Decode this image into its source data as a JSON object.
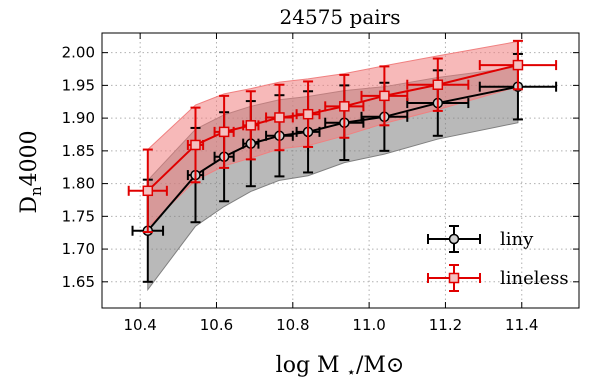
{
  "chart_data": {
    "type": "line",
    "title": "24575 pairs",
    "xlabel": "log M",
    "xlabel_sub": "⋆",
    "xlabel_tail": "/M",
    "xlabel_sym": "⊙",
    "ylabel": "D",
    "ylabel_sub": "n",
    "ylabel_tail": "4000",
    "xlim": [
      10.3,
      11.55
    ],
    "ylim": [
      1.61,
      2.03
    ],
    "xticks": [
      10.4,
      10.6,
      10.8,
      11.0,
      11.2,
      11.4
    ],
    "xtick_labels": [
      "10.4",
      "10.6",
      "10.8",
      "11.0",
      "11.2",
      "11.4"
    ],
    "yticks": [
      1.65,
      1.7,
      1.75,
      1.8,
      1.85,
      1.9,
      1.95,
      2.0
    ],
    "ytick_labels": [
      "1.65",
      "1.70",
      "1.75",
      "1.80",
      "1.85",
      "1.90",
      "1.95",
      "2.00"
    ],
    "grid": true,
    "legend_position": "lower-right",
    "series": [
      {
        "name": "liny",
        "color": "#000000",
        "band_color": "#808080",
        "marker": "circle",
        "x": [
          10.42,
          10.545,
          10.62,
          10.69,
          10.765,
          10.84,
          10.935,
          11.04,
          11.18,
          11.39
        ],
        "y": [
          1.728,
          1.813,
          1.841,
          1.861,
          1.873,
          1.879,
          1.893,
          1.902,
          1.923,
          1.948
        ],
        "xerr": [
          0.04,
          0.02,
          0.025,
          0.02,
          0.035,
          0.03,
          0.05,
          0.06,
          0.08,
          0.1
        ],
        "yerr": [
          0.078,
          0.072,
          0.068,
          0.065,
          0.062,
          0.062,
          0.057,
          0.052,
          0.05,
          0.05
        ],
        "band_low": [
          1.638,
          1.735,
          1.765,
          1.788,
          1.805,
          1.812,
          1.832,
          1.845,
          1.868,
          1.893
        ],
        "band_high": [
          1.805,
          1.883,
          1.905,
          1.918,
          1.928,
          1.933,
          1.942,
          1.948,
          1.962,
          1.978
        ]
      },
      {
        "name": "lineless",
        "color": "#e00000",
        "band_color": "#f08080",
        "marker": "square",
        "x": [
          10.42,
          10.545,
          10.62,
          10.69,
          10.765,
          10.84,
          10.935,
          11.04,
          11.18,
          11.39
        ],
        "y": [
          1.789,
          1.859,
          1.879,
          1.889,
          1.901,
          1.906,
          1.918,
          1.934,
          1.951,
          1.981
        ],
        "xerr": [
          0.05,
          0.02,
          0.025,
          0.02,
          0.035,
          0.03,
          0.05,
          0.06,
          0.08,
          0.1
        ],
        "yerr": [
          0.063,
          0.057,
          0.055,
          0.052,
          0.05,
          0.05,
          0.048,
          0.045,
          0.04,
          0.037
        ],
        "band_low": [
          1.733,
          1.805,
          1.827,
          1.839,
          1.853,
          1.858,
          1.873,
          1.892,
          1.913,
          1.948
        ],
        "band_high": [
          1.852,
          1.92,
          1.937,
          1.945,
          1.955,
          1.96,
          1.968,
          1.98,
          1.995,
          2.017
        ]
      }
    ]
  }
}
